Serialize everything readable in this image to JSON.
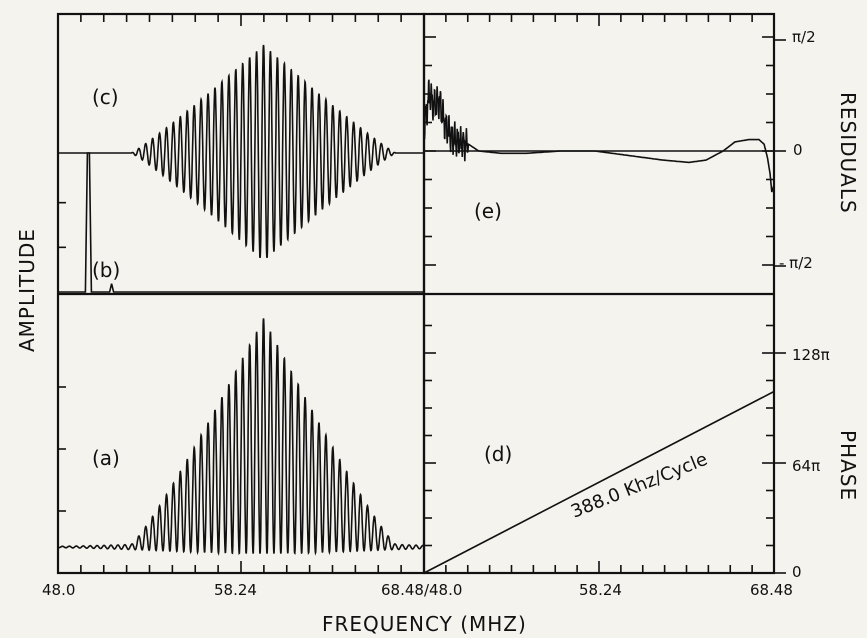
{
  "figure": {
    "xlabel": "FREQUENCY (MHZ)",
    "ylabel_left": "AMPLITUDE",
    "ylabel_right_top": "RESIDUALS",
    "ylabel_right_bottom": "PHASE",
    "x_tick_labels_left": [
      "48.0",
      "58.24",
      "68.48/48.0"
    ],
    "x_tick_labels_right": [
      "58.24",
      "68.48"
    ],
    "residual_tick_labels": [
      "π/2",
      "0",
      "- π/2"
    ],
    "phase_tick_labels": [
      "128π",
      "64π",
      "0"
    ],
    "panel_labels": {
      "a": "(a)",
      "b": "(b)",
      "c": "(c)",
      "d": "(d)",
      "e": "(e)"
    },
    "annotation_d": "388.0 Khz/Cycle"
  },
  "chart_data": [
    {
      "panel": "(a)",
      "type": "line",
      "xlabel": "FREQUENCY (MHZ)",
      "ylabel": "AMPLITUDE",
      "xlim": [
        48.0,
        68.48
      ],
      "x_ticks": [
        48.0,
        58.24,
        68.48
      ],
      "description_values": {
        "center": 59.5,
        "fringes": 45,
        "peak": 1.0,
        "baseline": 0.0
      }
    },
    {
      "panel": "(b)",
      "type": "line",
      "xlabel": "FREQUENCY (MHZ)",
      "ylabel": "AMPLITUDE",
      "xlim": [
        48.0,
        68.48
      ],
      "peaks": [
        {
          "x": 49.7,
          "y": 1.0
        },
        {
          "x": 51.0,
          "y": 0.06
        }
      ]
    },
    {
      "panel": "(c)",
      "type": "line",
      "xlabel": "FREQUENCY (MHZ)",
      "ylabel": "AMPLITUDE",
      "xlim": [
        48.0,
        68.48
      ],
      "description_values": {
        "center": 59.5,
        "fringes": 45,
        "peak": 1.0,
        "trough": -1.0
      }
    },
    {
      "panel": "(d)",
      "type": "line",
      "xlabel": "FREQUENCY (MHZ)",
      "ylabel": "PHASE",
      "xlim": [
        48.0,
        68.48
      ],
      "ylim": [
        0,
        160
      ],
      "y_ticks": [
        0,
        64,
        128
      ],
      "y_tick_unit": "π",
      "series": [
        {
          "x": [
            48.0,
            68.48
          ],
          "y": [
            0,
            105.6
          ]
        }
      ]
    },
    {
      "panel": "(e)",
      "type": "line",
      "xlabel": "FREQUENCY (MHZ)",
      "ylabel": "RESIDUALS",
      "xlim": [
        48.0,
        68.48
      ],
      "ylim": [
        -0.8,
        0.8
      ],
      "y_ticks": [
        -0.5,
        0,
        0.5
      ],
      "y_tick_unit": "π",
      "series": [
        {
          "x": [
            48.0,
            48.3,
            48.6,
            48.9,
            49.2,
            49.6,
            50.0,
            50.6,
            51.2,
            52.5,
            54.0,
            56.0,
            58.0,
            60.0,
            62.0,
            63.5,
            64.5,
            65.5,
            66.2,
            67.0,
            67.6,
            67.9,
            68.1,
            68.25,
            68.35,
            68.48
          ],
          "y": [
            0.1,
            0.25,
            0.2,
            0.22,
            0.12,
            0.06,
            0.04,
            0.03,
            0.0,
            -0.01,
            -0.01,
            0.0,
            0.0,
            -0.02,
            -0.04,
            -0.05,
            -0.04,
            0.0,
            0.04,
            0.05,
            0.05,
            0.03,
            -0.03,
            -0.1,
            -0.18,
            -0.15
          ]
        }
      ]
    }
  ]
}
